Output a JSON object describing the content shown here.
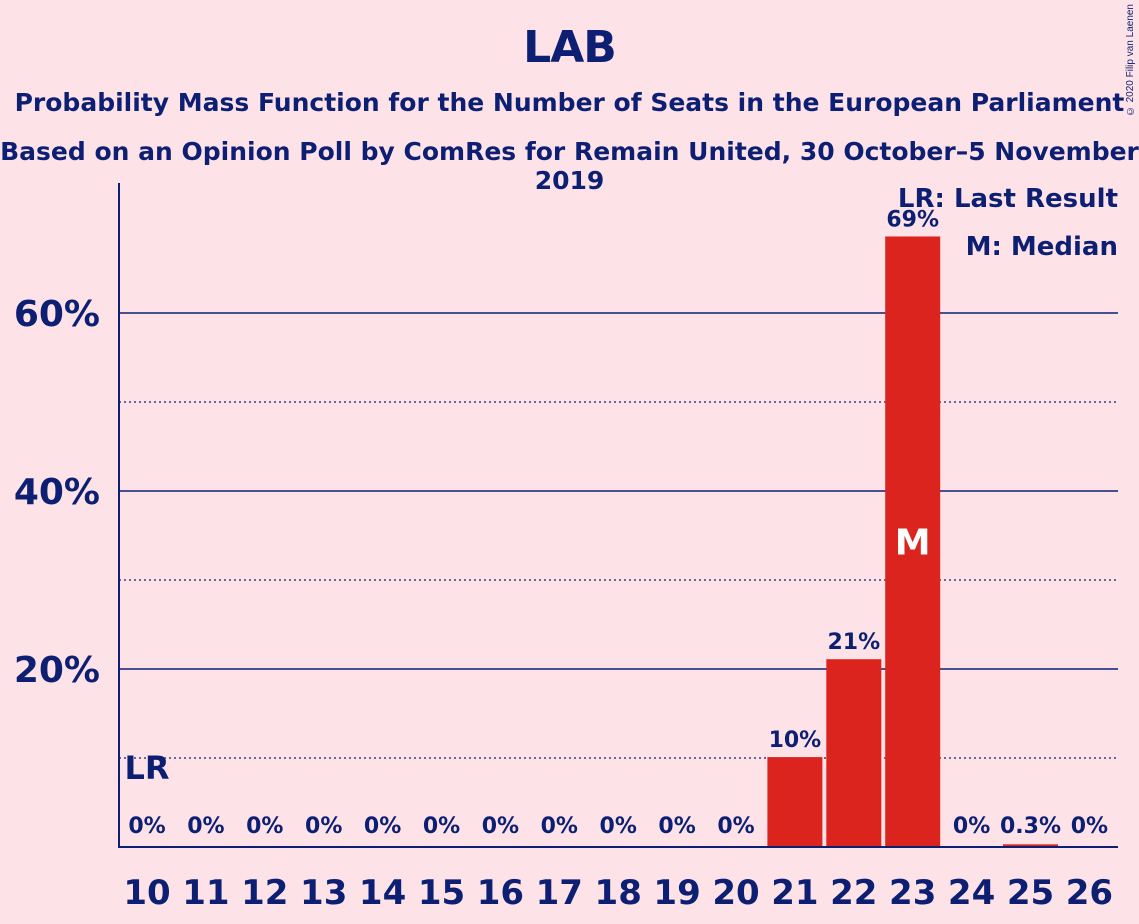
{
  "header": {
    "title": "LAB",
    "subtitle": "Probability Mass Function for the Number of Seats in the European Parliament",
    "poll_line": "Based on an Opinion Poll by ComRes for Remain United, 30 October–5 November 2019",
    "copyright": "© 2020 Filip van Laenen"
  },
  "legend": {
    "last_result": "LR: Last Result",
    "median": "M: Median"
  },
  "colors": {
    "background": "#fde3e7",
    "bar": "#db241e",
    "text": "#0d1f73"
  },
  "chart_data": {
    "type": "bar",
    "title": "LAB",
    "xlabel": "",
    "ylabel": "",
    "ylim": [
      0,
      75
    ],
    "yticks_major": [
      20,
      40,
      60
    ],
    "yticks_minor": [
      10,
      30,
      50
    ],
    "ytick_labels": [
      "20%",
      "40%",
      "60%"
    ],
    "categories": [
      "10",
      "11",
      "12",
      "13",
      "14",
      "15",
      "16",
      "17",
      "18",
      "19",
      "20",
      "21",
      "22",
      "23",
      "24",
      "25",
      "26"
    ],
    "values": [
      0,
      0,
      0,
      0,
      0,
      0,
      0,
      0,
      0,
      0,
      0,
      10.1,
      21.1,
      68.6,
      0,
      0.3,
      0
    ],
    "value_labels": [
      "0%",
      "0%",
      "0%",
      "0%",
      "0%",
      "0%",
      "0%",
      "0%",
      "0%",
      "0%",
      "0%",
      "10%",
      "21%",
      "69%",
      "0%",
      "0.3%",
      "0%"
    ],
    "last_result_category": "10",
    "last_result_label": "LR",
    "median_category": "23",
    "median_label": "M"
  }
}
